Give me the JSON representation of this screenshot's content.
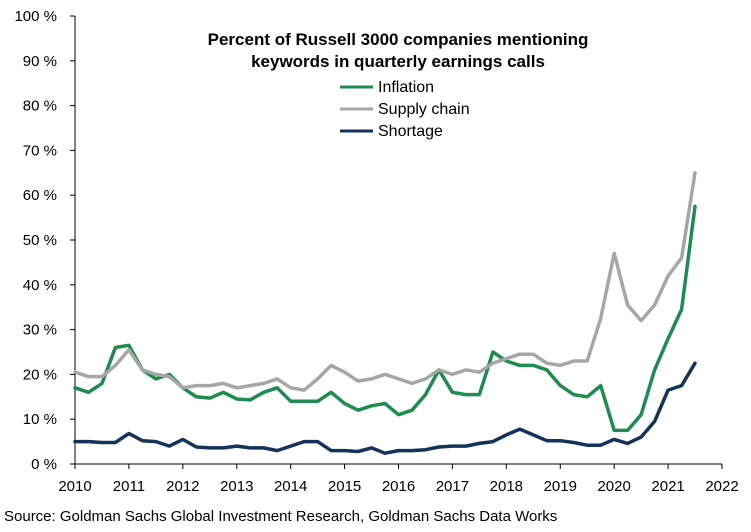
{
  "chart_data": {
    "type": "line",
    "title_lines": [
      "Percent of Russell 3000 companies mentioning",
      "keywords in quarterly earnings calls"
    ],
    "xlabel": "",
    "ylabel": "",
    "xlim": [
      2010,
      2022
    ],
    "ylim": [
      0,
      100
    ],
    "x_ticks": [
      "2010",
      "2011",
      "2012",
      "2013",
      "2014",
      "2015",
      "2016",
      "2017",
      "2018",
      "2019",
      "2020",
      "2021",
      "2022"
    ],
    "y_ticks": [
      "0 %",
      "10 %",
      "20 %",
      "30 %",
      "40 %",
      "50 %",
      "60 %",
      "70 %",
      "80 %",
      "90 %",
      "100 %"
    ],
    "grid": false,
    "legend_position": "top-center",
    "x": [
      2010.0,
      2010.25,
      2010.5,
      2010.75,
      2011.0,
      2011.25,
      2011.5,
      2011.75,
      2012.0,
      2012.25,
      2012.5,
      2012.75,
      2013.0,
      2013.25,
      2013.5,
      2013.75,
      2014.0,
      2014.25,
      2014.5,
      2014.75,
      2015.0,
      2015.25,
      2015.5,
      2015.75,
      2016.0,
      2016.25,
      2016.5,
      2016.75,
      2017.0,
      2017.25,
      2017.5,
      2017.75,
      2018.0,
      2018.25,
      2018.5,
      2018.75,
      2019.0,
      2019.25,
      2019.5,
      2019.75,
      2020.0,
      2020.25,
      2020.5,
      2020.75,
      2021.0,
      2021.25,
      2021.5
    ],
    "series": [
      {
        "name": "Inflation",
        "color": "#1e8c4e",
        "values": [
          17,
          16,
          18,
          26,
          26.5,
          21,
          19,
          20,
          17,
          15,
          14.7,
          16,
          14.5,
          14.3,
          16,
          17,
          14,
          14,
          14,
          16,
          13.5,
          12,
          13,
          13.5,
          11,
          12,
          15.5,
          21,
          16,
          15.5,
          15.5,
          25,
          23,
          22,
          22,
          21,
          17.5,
          15.5,
          15,
          17.5,
          7.5,
          7.5,
          11,
          21,
          28,
          34.5,
          57.5
        ]
      },
      {
        "name": "Supply chain",
        "color": "#a6a6a6",
        "values": [
          20.5,
          19.5,
          19.5,
          22,
          25.5,
          21,
          20,
          19.5,
          17,
          17.5,
          17.5,
          18,
          17,
          17.5,
          18,
          19,
          17,
          16.5,
          19,
          22,
          20.5,
          18.5,
          19,
          20,
          19,
          18,
          19,
          21,
          20,
          21,
          20.5,
          22.5,
          23.5,
          24.5,
          24.5,
          22.5,
          22,
          23,
          23,
          32.5,
          47,
          35.5,
          32,
          35.5,
          42,
          46,
          65
        ]
      },
      {
        "name": "Shortage",
        "color": "#13335a",
        "values": [
          5,
          5,
          4.8,
          4.8,
          6.8,
          5.2,
          5,
          4,
          5.5,
          3.8,
          3.6,
          3.6,
          4,
          3.6,
          3.6,
          3,
          4,
          5,
          5,
          3,
          3,
          2.8,
          3.6,
          2.4,
          3,
          3,
          3.2,
          3.8,
          4,
          4,
          4.6,
          5,
          6.5,
          7.8,
          6.5,
          5.2,
          5.2,
          4.8,
          4.2,
          4.2,
          5.5,
          4.6,
          6,
          9.5,
          16.5,
          17.5,
          22.5
        ]
      }
    ]
  },
  "source": "Source: Goldman Sachs Global Investment Research, Goldman Sachs Data Works"
}
